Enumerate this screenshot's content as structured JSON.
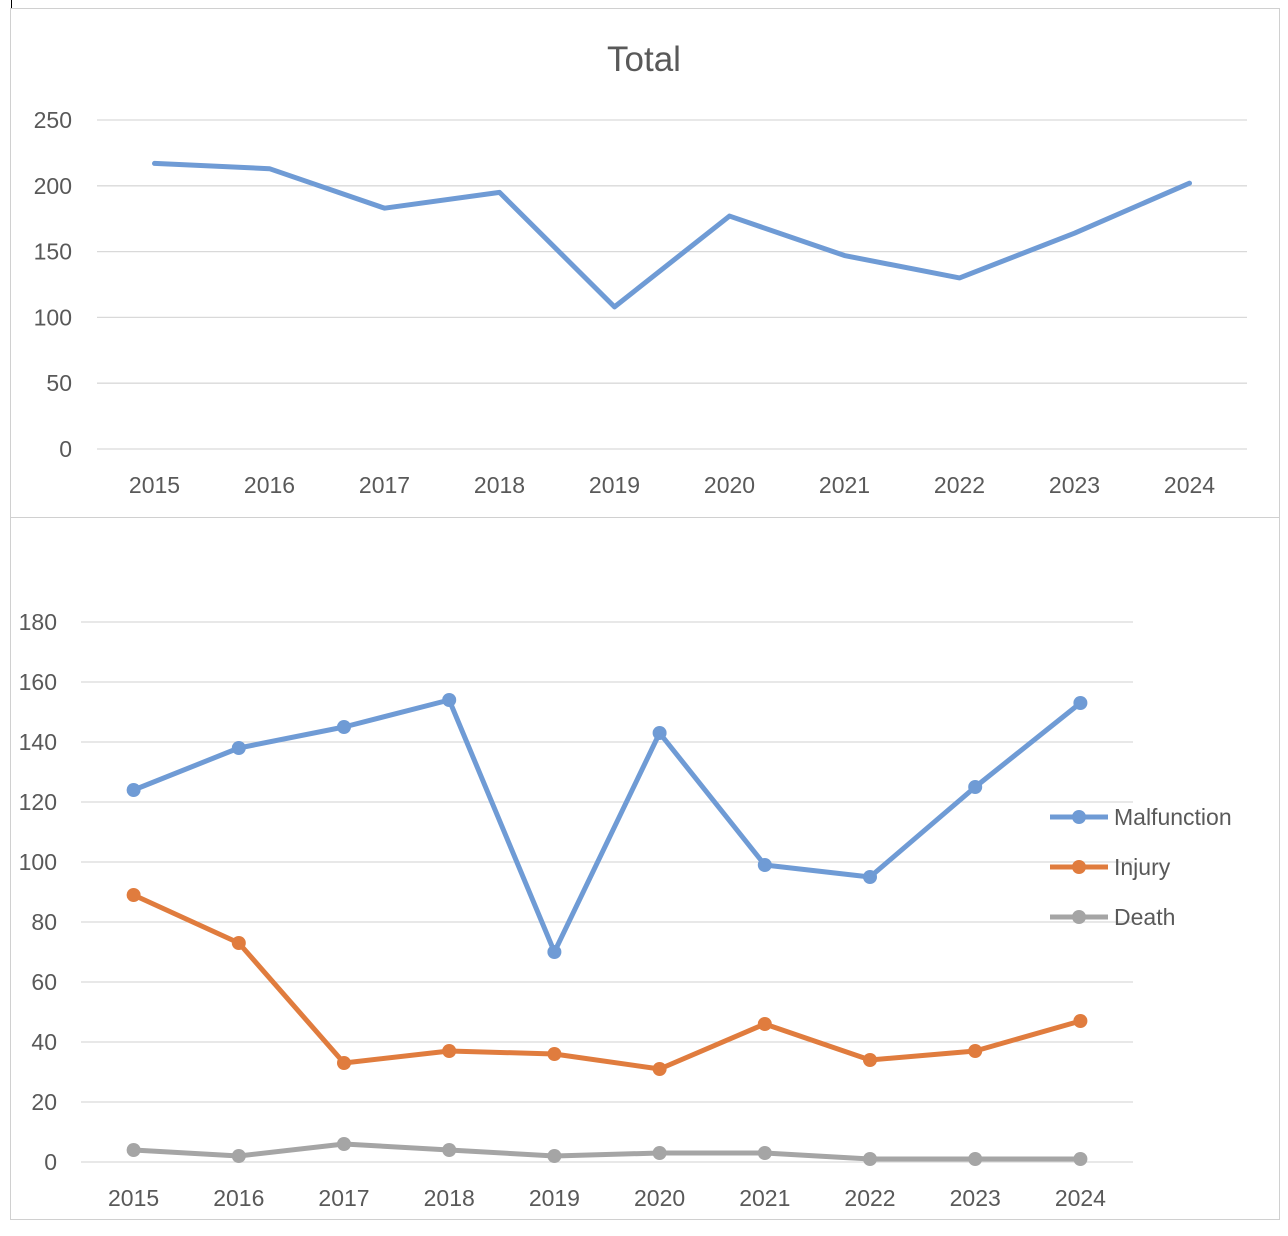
{
  "colors": {
    "malfunction": "#6f9bd5",
    "injury": "#e07c3e",
    "death": "#a5a5a5",
    "grid": "#d9d9d9",
    "text": "#595959"
  },
  "chart_data": [
    {
      "type": "line",
      "title": "Total",
      "categories": [
        "2015",
        "2016",
        "2017",
        "2018",
        "2019",
        "2020",
        "2021",
        "2022",
        "2023",
        "2024"
      ],
      "y_ticks": [
        "0",
        "50",
        "100",
        "150",
        "200",
        "250"
      ],
      "ylim": [
        0,
        250
      ],
      "grid": true,
      "markers": false,
      "series": [
        {
          "values": [
            217,
            213,
            183,
            195,
            108,
            177,
            147,
            130,
            164,
            202
          ]
        }
      ]
    },
    {
      "type": "line",
      "title": "",
      "categories": [
        "2015",
        "2016",
        "2017",
        "2018",
        "2019",
        "2020",
        "2021",
        "2022",
        "2023",
        "2024"
      ],
      "y_ticks": [
        "0",
        "20",
        "40",
        "60",
        "80",
        "100",
        "120",
        "140",
        "160",
        "180"
      ],
      "ylim": [
        0,
        180
      ],
      "grid": true,
      "markers": true,
      "legend": "right",
      "series": [
        {
          "name": "Malfunction",
          "values": [
            124,
            138,
            145,
            154,
            70,
            143,
            99,
            95,
            125,
            153
          ]
        },
        {
          "name": "Injury",
          "values": [
            89,
            73,
            33,
            37,
            36,
            31,
            46,
            34,
            37,
            47
          ]
        },
        {
          "name": "Death",
          "values": [
            4,
            2,
            6,
            4,
            2,
            3,
            3,
            1,
            1,
            1
          ]
        }
      ]
    }
  ]
}
